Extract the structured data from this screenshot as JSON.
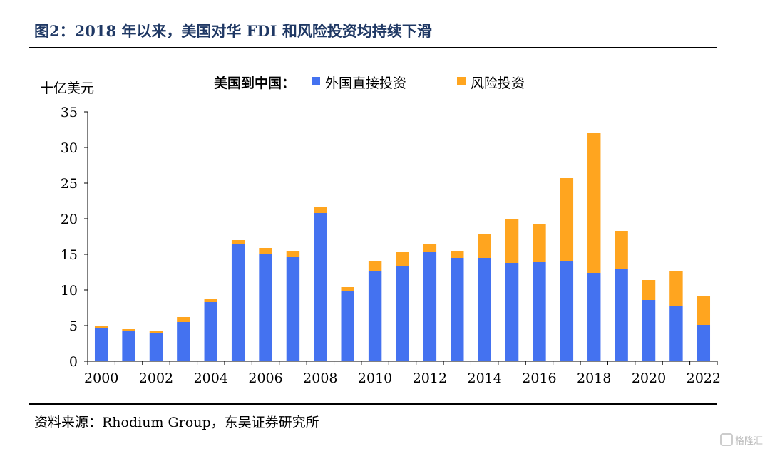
{
  "figure": {
    "title": "图2：2018 年以来，美国对华 FDI 和风险投资均持续下滑",
    "source": "资料来源：Rhodium Group，东吴证券研究所",
    "watermark": "格隆汇"
  },
  "chart_data": {
    "type": "bar",
    "stacked": true,
    "ylabel": "十亿美元",
    "legend_title": "美国到中国：",
    "legend_position": "top-center",
    "ylim": [
      0,
      35
    ],
    "yticks": [
      0,
      5,
      10,
      15,
      20,
      25,
      30,
      35
    ],
    "categories": [
      "2000",
      "2001",
      "2002",
      "2003",
      "2004",
      "2005",
      "2006",
      "2007",
      "2008",
      "2009",
      "2010",
      "2011",
      "2012",
      "2013",
      "2014",
      "2015",
      "2016",
      "2017",
      "2018",
      "2019",
      "2020",
      "2021",
      "2022"
    ],
    "xtick_labels": [
      "2000",
      "",
      "2002",
      "",
      "2004",
      "",
      "2006",
      "",
      "2008",
      "",
      "2010",
      "",
      "2012",
      "",
      "2014",
      "",
      "2016",
      "",
      "2018",
      "",
      "2020",
      "",
      "2022"
    ],
    "series": [
      {
        "name": "外国直接投资",
        "color": "#4472f0",
        "values": [
          4.6,
          4.2,
          4.0,
          5.5,
          8.3,
          16.4,
          15.1,
          14.6,
          20.8,
          9.8,
          12.6,
          13.4,
          15.3,
          14.5,
          14.5,
          13.8,
          13.9,
          14.1,
          12.4,
          13.0,
          8.6,
          7.7,
          5.1
        ]
      },
      {
        "name": "风险投资",
        "color": "#ffa51f",
        "values": [
          0.3,
          0.3,
          0.3,
          0.7,
          0.4,
          0.6,
          0.8,
          0.9,
          0.9,
          0.6,
          1.5,
          1.9,
          1.2,
          1.0,
          3.4,
          6.2,
          5.4,
          11.6,
          19.7,
          5.3,
          2.8,
          5.0,
          4.0
        ]
      }
    ],
    "grid": false
  }
}
